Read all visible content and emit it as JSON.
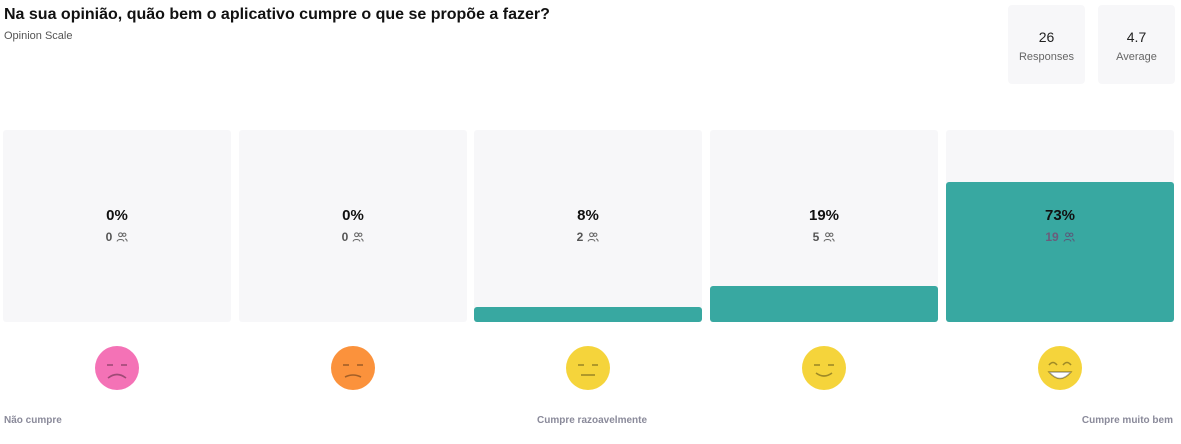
{
  "header": {
    "title": "Na sua opinião, quão bem o aplicativo cumpre o que se propõe a fazer?",
    "subtitle": "Opinion Scale"
  },
  "stats": {
    "responses_value": "26",
    "responses_label": "Responses",
    "average_value": "4.7",
    "average_label": "Average"
  },
  "chart_data": {
    "type": "bar",
    "categories": [
      "1",
      "2",
      "3",
      "4",
      "5"
    ],
    "values": [
      0,
      0,
      8,
      19,
      73
    ],
    "percent_labels": [
      "0%",
      "0%",
      "8%",
      "19%",
      "73%"
    ],
    "counts": [
      "0",
      "0",
      "2",
      "5",
      "19"
    ],
    "ylim": [
      0,
      100
    ],
    "scale_labels": {
      "left": "Não cumpre",
      "middle": "Cumpre razoavelmente",
      "right": "Cumpre muito bem"
    },
    "colors": {
      "bar": "#38a8a1",
      "track": "#f7f7f9"
    }
  },
  "emojis": [
    {
      "icon": "very-sad-face-icon",
      "color": "#f472b6"
    },
    {
      "icon": "sad-face-icon",
      "color": "#fb923c"
    },
    {
      "icon": "neutral-face-icon",
      "color": "#f5d43b"
    },
    {
      "icon": "smiling-face-icon",
      "color": "#f5d43b"
    },
    {
      "icon": "grinning-face-icon",
      "color": "#f5d43b"
    }
  ]
}
